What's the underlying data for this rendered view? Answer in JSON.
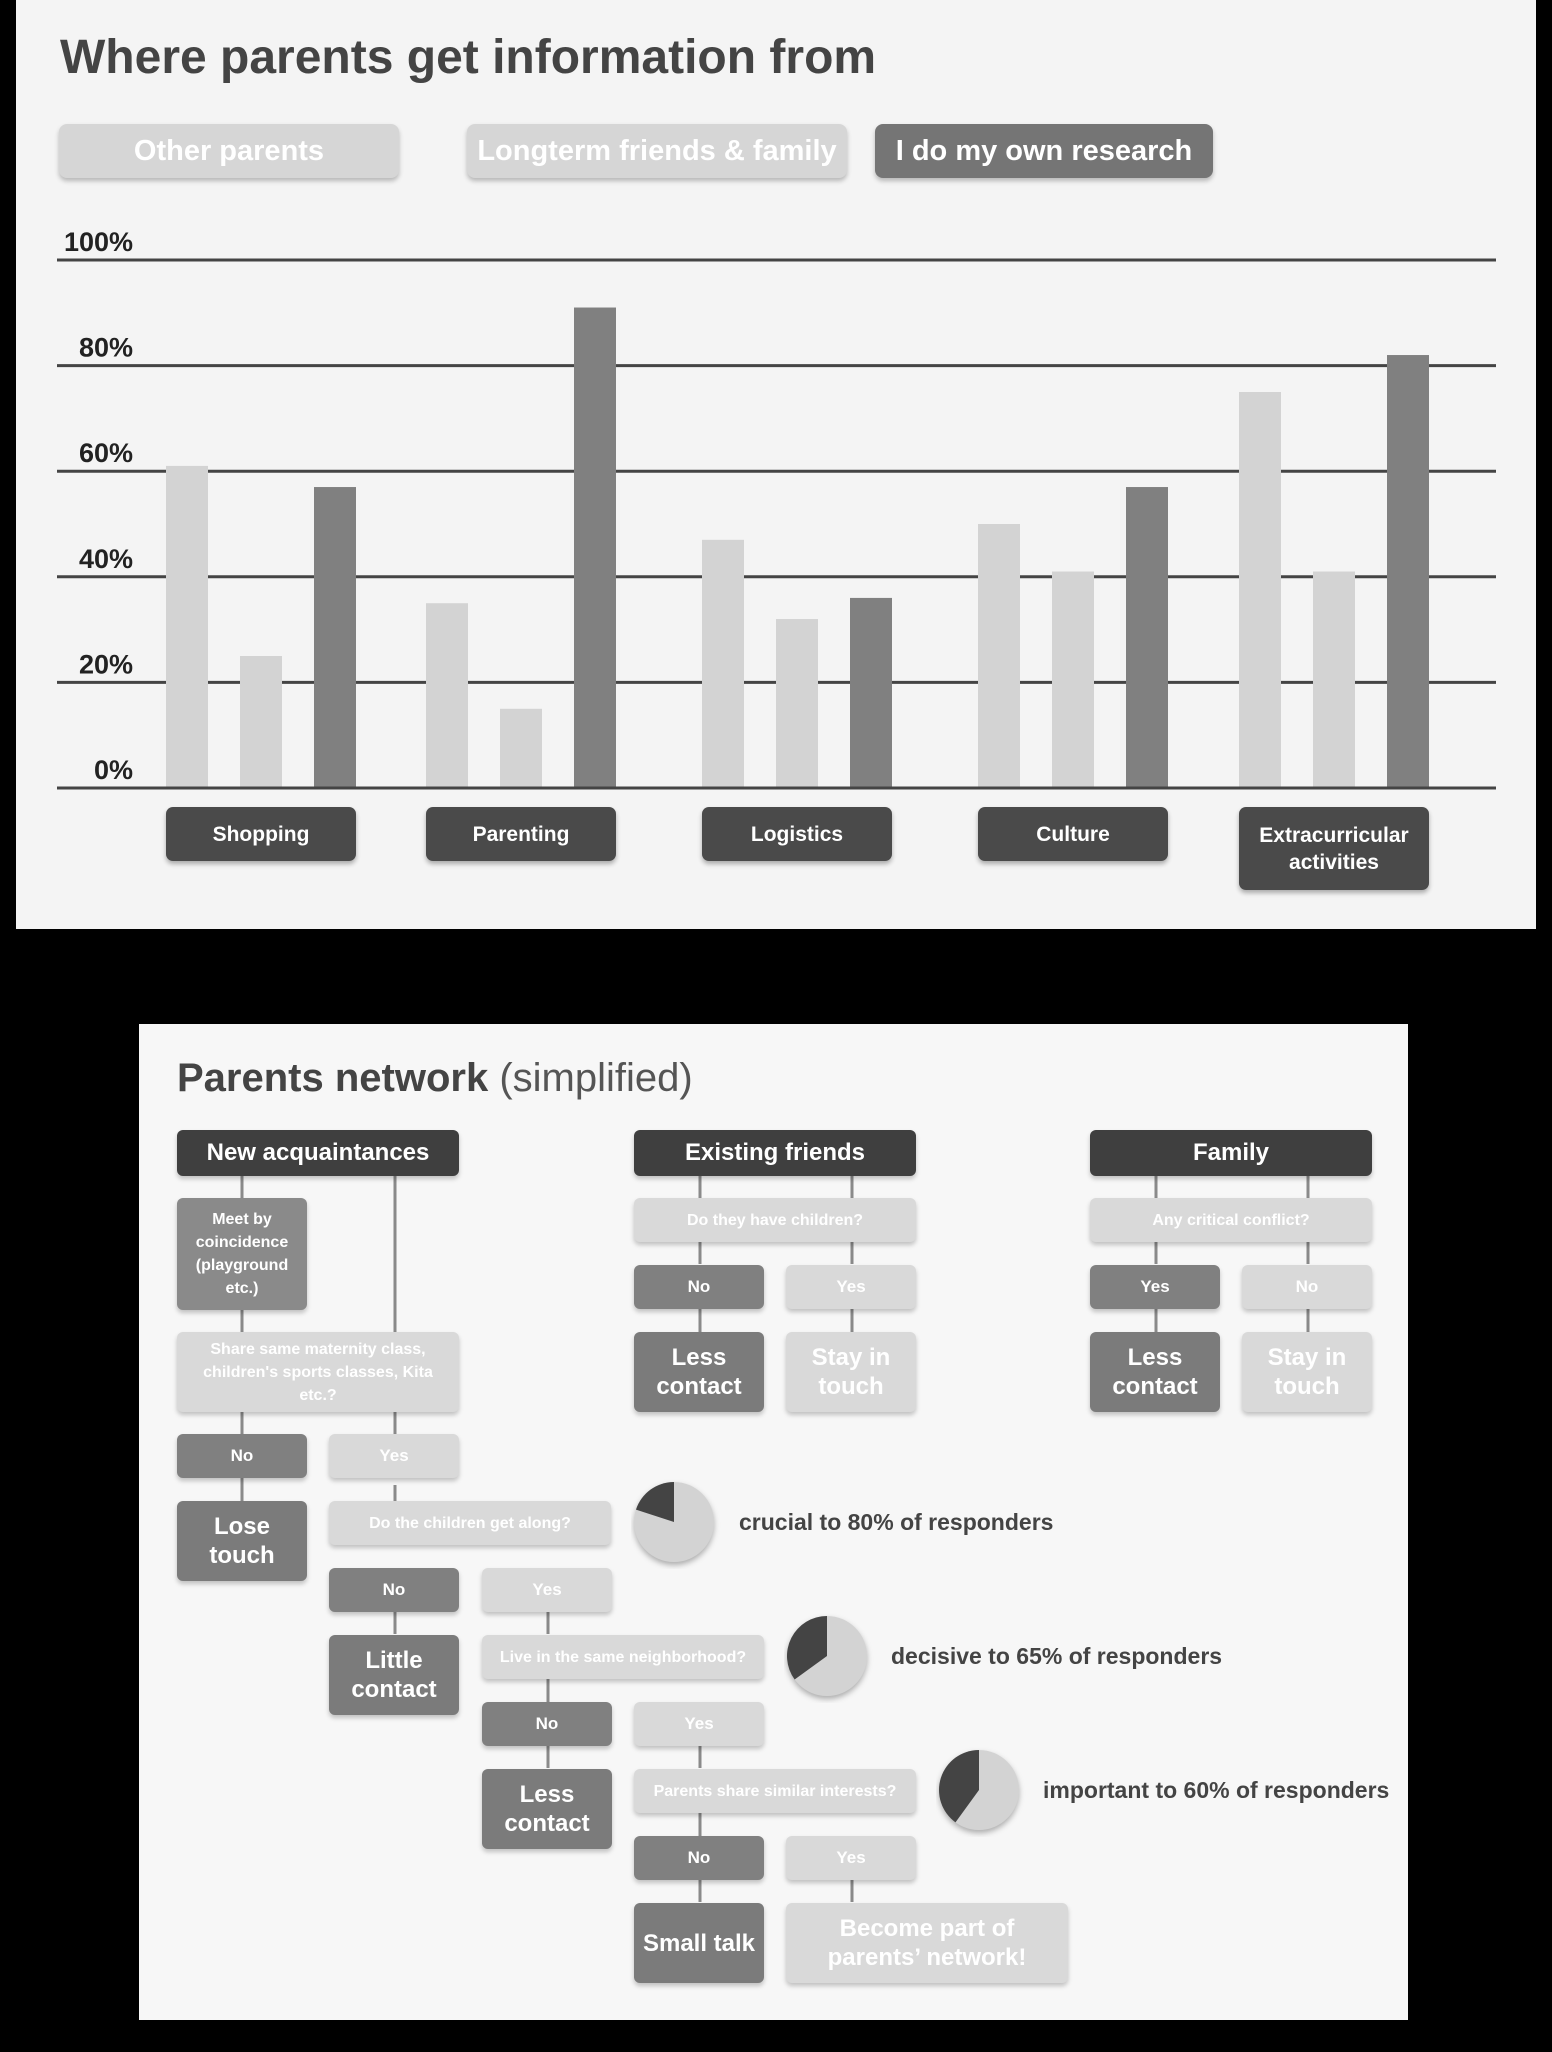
{
  "chart": {
    "title": "Where parents get information from",
    "legend": [
      "Other parents",
      "Longterm friends & family",
      "I do my own research"
    ]
  },
  "chart_data": {
    "type": "bar",
    "title": "Where parents get information from",
    "categories": [
      "Shopping",
      "Parenting",
      "Logistics",
      "Culture",
      "Extracurricular activities"
    ],
    "series": [
      {
        "name": "Other parents",
        "values": [
          61,
          35,
          47,
          50,
          75
        ]
      },
      {
        "name": "Longterm friends & family",
        "values": [
          25,
          15,
          32,
          41,
          41
        ]
      },
      {
        "name": "I do my own research",
        "values": [
          57,
          91,
          36,
          57,
          82
        ]
      }
    ],
    "yticks": [
      "0%",
      "20%",
      "40%",
      "60%",
      "80%",
      "100%"
    ],
    "ylim": [
      0,
      100
    ],
    "grid": true,
    "legend_position": "top",
    "colors": [
      "#d3d3d3",
      "#d3d3d3",
      "#808080"
    ]
  },
  "network": {
    "title_bold": "Parents network",
    "title_rest": " (simplified)",
    "new": {
      "header": "New acquaintances",
      "meet": "Meet by coincidence (playground etc.)",
      "share": "Share same maternity class, children's sports classes, Kita etc.?",
      "no": "No",
      "yes": "Yes",
      "lose": "Lose touch",
      "q_along": "Do the children get along?",
      "no2": "No",
      "yes2": "Yes",
      "little": "Little contact",
      "q_neigh": "Live in the same neighborhood?",
      "no3": "No",
      "yes3": "Yes",
      "less": "Less contact",
      "q_int": "Parents share similar interests?",
      "no4": "No",
      "yes4": "Yes",
      "small": "Small talk",
      "become": "Become part of parents’ network!"
    },
    "existing": {
      "header": "Existing friends",
      "q": "Do they have children?",
      "no": "No",
      "yes": "Yes",
      "less": "Less contact",
      "stay": "Stay in touch"
    },
    "family": {
      "header": "Family",
      "q": "Any critical conflict?",
      "yes": "Yes",
      "no": "No",
      "less": "Less contact",
      "stay": "Stay in touch"
    },
    "stats": [
      {
        "text": "crucial to 80% of responders",
        "pct": 80
      },
      {
        "text": "decisive to 65% of responders",
        "pct": 65
      },
      {
        "text": "important to 60% of responders",
        "pct": 60
      }
    ]
  }
}
